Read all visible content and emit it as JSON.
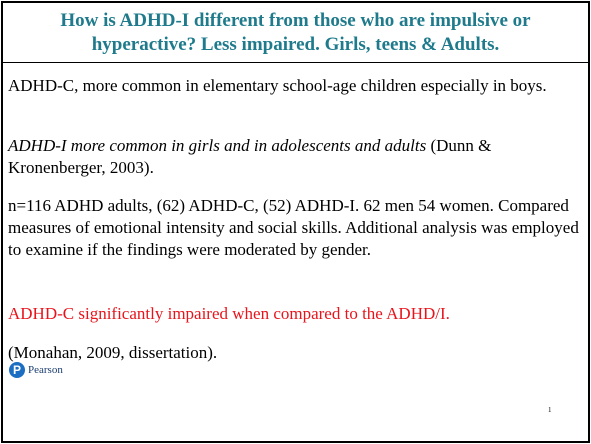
{
  "slide": {
    "title_lines": [
      "How is ADHD-I different from those who are impulsive or",
      "hyperactive? Less impaired. Girls, teens & Adults."
    ],
    "paragraphs": [
      {
        "text": "ADHD-C, more common in elementary school-age children especially in boys."
      },
      {
        "italic": "ADHD-I more common in girls and in adolescents and adults",
        "text": " (Dunn & Kronenberger, 2003)."
      },
      {
        "text": "n=116 ADHD adults, (62) ADHD-C, (52) ADHD-I.  62 men 54 women. Compared measures of emotional intensity and social skills. Additional analysis was employed to examine if the findings were moderated by gender."
      },
      {
        "text": "ADHD-C significantly impaired when compared to the ADHD/I."
      },
      {
        "text": "(Monahan, 2009, dissertation)."
      }
    ],
    "logo": "Pearson",
    "page_number": "1"
  }
}
